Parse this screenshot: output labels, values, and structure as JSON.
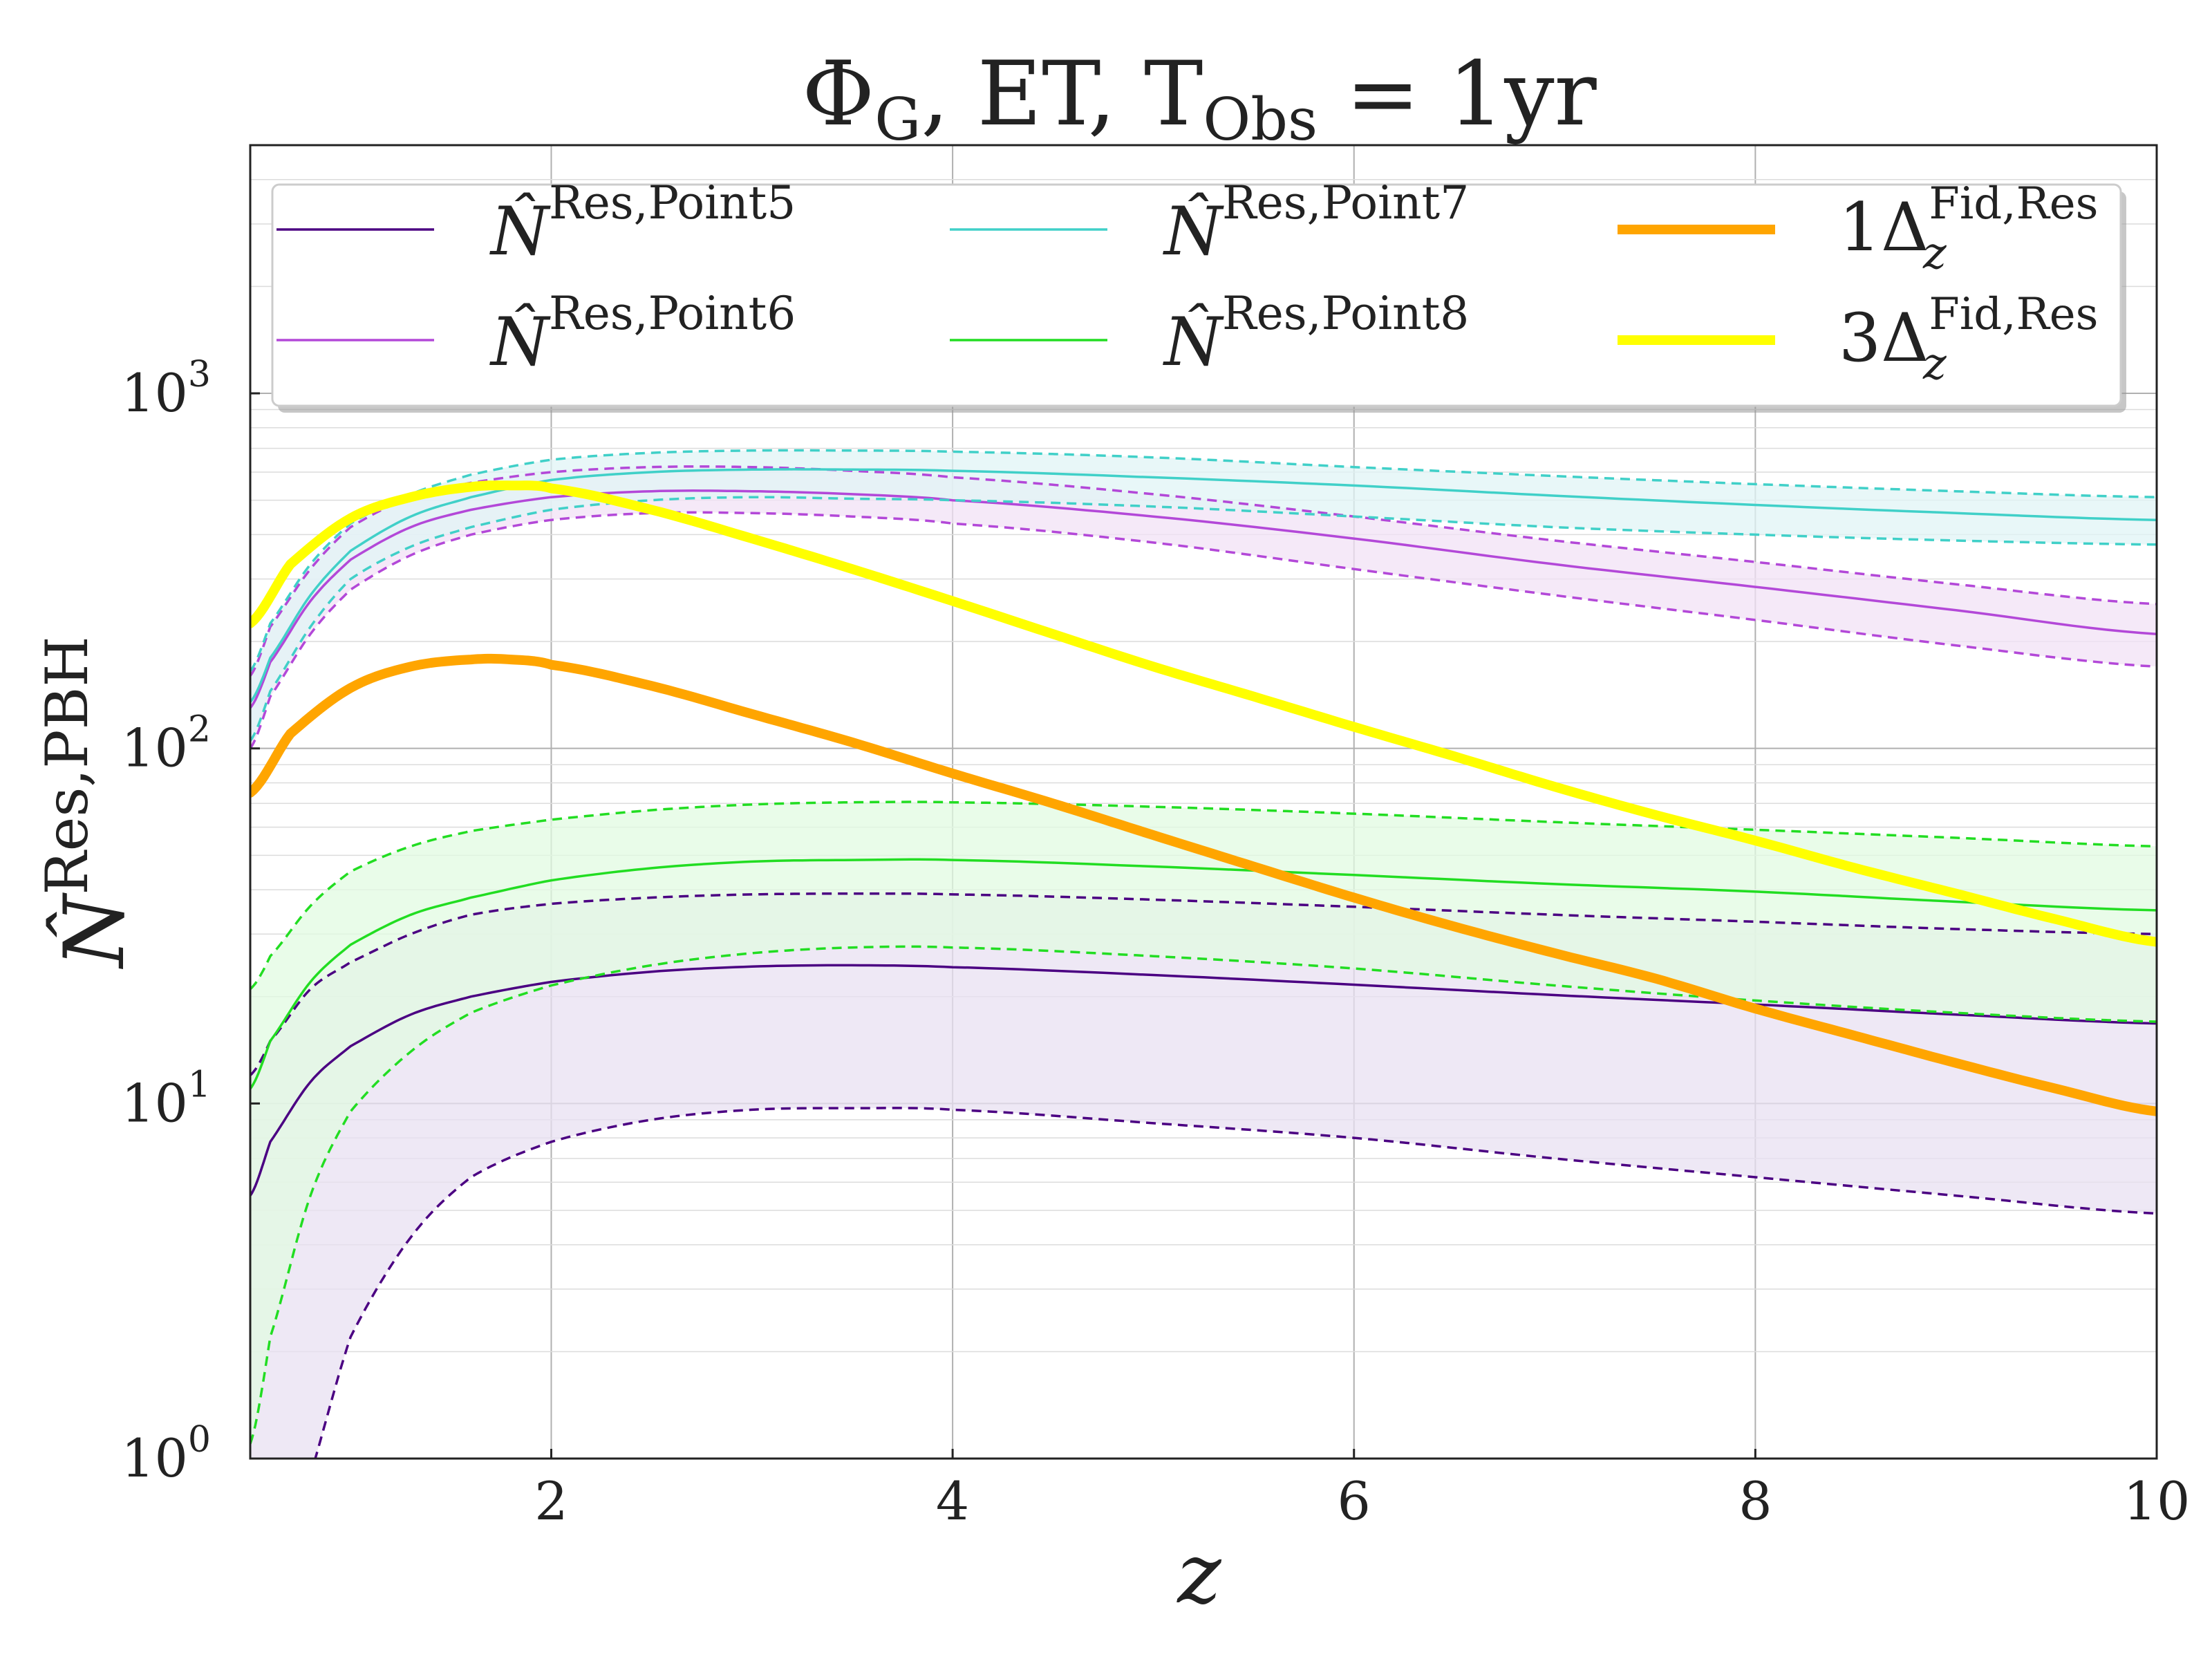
{
  "chart_data": {
    "type": "line",
    "title": "ΦG, ET, TObs = 1yr",
    "title_parts": {
      "phi": "Φ",
      "phi_sub": "G",
      "mid": ", ET, T",
      "t_sub": "Obs",
      "end": " = 1yr"
    },
    "xlabel": "z",
    "ylabel": {
      "base": "N̂",
      "sup": "Res,PBH"
    },
    "xlim": [
      0.5,
      10
    ],
    "ylim": [
      1,
      5000
    ],
    "yscale": "log",
    "grid": true,
    "legend_placement": "top",
    "x_ticks": [
      {
        "value": 2,
        "label": "2"
      },
      {
        "value": 4,
        "label": "4"
      },
      {
        "value": 6,
        "label": "6"
      },
      {
        "value": 8,
        "label": "8"
      },
      {
        "value": 10,
        "label": "10"
      }
    ],
    "y_ticks": [
      {
        "value": 1,
        "base": "10",
        "exp": "0"
      },
      {
        "value": 10,
        "base": "10",
        "exp": "1"
      },
      {
        "value": 100,
        "base": "10",
        "exp": "2"
      },
      {
        "value": 1000,
        "base": "10",
        "exp": "3"
      }
    ],
    "bands": [
      {
        "name": "N̂Res,Point5",
        "legend": {
          "base": "N̂",
          "sup": "Res,Point5"
        },
        "color": "#4b0082",
        "fill": "#e8e0f2",
        "x": [
          0.5,
          0.6,
          0.8,
          1.0,
          1.3,
          1.6,
          2.0,
          2.5,
          3.0,
          3.5,
          4.0,
          5.0,
          6.0,
          7.0,
          8.0,
          9.0,
          10.0
        ],
        "center": [
          5.5,
          7.8,
          11.5,
          14.5,
          17.8,
          20.0,
          22.0,
          23.5,
          24.3,
          24.5,
          24.2,
          23.0,
          21.6,
          20.2,
          19.0,
          17.8,
          16.8
        ],
        "lower": [
          0.2,
          0.4,
          0.9,
          2.2,
          4.2,
          6.2,
          7.8,
          9.0,
          9.6,
          9.7,
          9.6,
          8.8,
          8.0,
          7.0,
          6.2,
          5.5,
          4.9
        ],
        "upper": [
          12.0,
          15.0,
          21.0,
          25.0,
          30.0,
          34.0,
          36.5,
          38.0,
          38.8,
          39.0,
          38.8,
          37.5,
          35.8,
          34.0,
          32.5,
          31.0,
          30.0
        ]
      },
      {
        "name": "N̂Res,Point6",
        "legend": {
          "base": "N̂",
          "sup": "Res,Point6"
        },
        "color": "#b348d8",
        "fill": "#f1e2f6",
        "x": [
          0.5,
          0.6,
          0.8,
          1.0,
          1.3,
          1.6,
          2.0,
          2.5,
          3.0,
          3.5,
          4.0,
          5.0,
          6.0,
          7.0,
          8.0,
          9.0,
          10.0
        ],
        "center": [
          130,
          175,
          260,
          340,
          420,
          470,
          510,
          530,
          530,
          520,
          500,
          450,
          390,
          330,
          285,
          245,
          210
        ],
        "lower": [
          100,
          140,
          210,
          280,
          350,
          400,
          440,
          460,
          460,
          450,
          430,
          380,
          320,
          270,
          230,
          195,
          170
        ],
        "upper": [
          160,
          220,
          320,
          420,
          510,
          560,
          600,
          620,
          620,
          605,
          580,
          520,
          450,
          385,
          335,
          290,
          255
        ]
      },
      {
        "name": "N̂Res,Point7",
        "legend": {
          "base": "N̂",
          "sup": "Res,Point7"
        },
        "color": "#40d0c8",
        "fill": "#e0f4f6",
        "x": [
          0.5,
          0.6,
          0.8,
          1.0,
          1.3,
          1.6,
          2.0,
          2.5,
          3.0,
          3.5,
          4.0,
          5.0,
          6.0,
          7.0,
          8.0,
          9.0,
          10.0
        ],
        "center": [
          135,
          180,
          270,
          360,
          450,
          510,
          570,
          600,
          610,
          610,
          605,
          580,
          550,
          515,
          485,
          460,
          440
        ],
        "lower": [
          105,
          145,
          220,
          300,
          370,
          420,
          470,
          500,
          510,
          505,
          500,
          480,
          450,
          420,
          400,
          385,
          375
        ],
        "upper": [
          165,
          225,
          330,
          430,
          520,
          590,
          650,
          680,
          690,
          690,
          685,
          660,
          620,
          585,
          555,
          530,
          510
        ]
      },
      {
        "name": "N̂Res,Point8",
        "legend": {
          "base": "N̂",
          "sup": "Res,Point8"
        },
        "color": "#22dd22",
        "fill": "#e2fbe2",
        "x": [
          0.5,
          0.6,
          0.8,
          1.0,
          1.3,
          1.6,
          2.0,
          2.5,
          3.0,
          3.5,
          4.0,
          5.0,
          6.0,
          7.0,
          8.0,
          9.0,
          10.0
        ],
        "center": [
          11,
          15,
          22,
          28,
          34,
          38,
          42.5,
          46,
          48,
          48.5,
          48.5,
          46.5,
          44,
          41.5,
          39.5,
          37,
          35
        ],
        "lower": [
          1.1,
          2.2,
          5.5,
          9.5,
          14,
          18,
          21.5,
          24.5,
          26.5,
          27.5,
          27.5,
          26,
          24,
          21.5,
          19.5,
          18,
          17
        ],
        "upper": [
          21,
          26,
          36,
          45,
          53,
          58.5,
          63,
          67,
          69.5,
          70.5,
          70.5,
          68.5,
          65.5,
          62,
          59,
          56,
          53
        ]
      }
    ],
    "lines": [
      {
        "name": "1Δz Fid,Res",
        "legend": {
          "coef": "1",
          "base": "Δ",
          "sub": "z",
          "sup": "Fid,Res"
        },
        "color": "#ffa500",
        "x": [
          0.5,
          0.7,
          1.0,
          1.3,
          1.6,
          1.8,
          2.0,
          2.5,
          3.0,
          3.5,
          4.0,
          4.5,
          5.0,
          5.5,
          6.0,
          6.5,
          7.0,
          7.5,
          8.0,
          8.5,
          9.0,
          9.5,
          10.0
        ],
        "y": [
          75,
          110,
          148,
          170,
          178,
          178,
          172,
          150,
          125,
          104,
          85,
          70,
          57,
          46.5,
          38,
          31.5,
          26.5,
          22.5,
          18.5,
          15.5,
          13,
          11,
          9.5
        ]
      },
      {
        "name": "3Δz Fid,Res",
        "legend": {
          "coef": "3",
          "base": "Δ",
          "sub": "z",
          "sup": "Fid,Res"
        },
        "color": "#ffff00",
        "x": [
          0.5,
          0.7,
          1.0,
          1.3,
          1.6,
          1.8,
          2.0,
          2.5,
          3.0,
          3.5,
          4.0,
          4.5,
          5.0,
          5.5,
          6.0,
          6.5,
          7.0,
          7.5,
          8.0,
          8.5,
          9.0,
          9.5,
          10.0
        ],
        "y": [
          225,
          330,
          445,
          510,
          545,
          550,
          540,
          470,
          390,
          320,
          260,
          210,
          170,
          140,
          115,
          95,
          78,
          65,
          55,
          46,
          39,
          33,
          28.5
        ]
      }
    ]
  }
}
